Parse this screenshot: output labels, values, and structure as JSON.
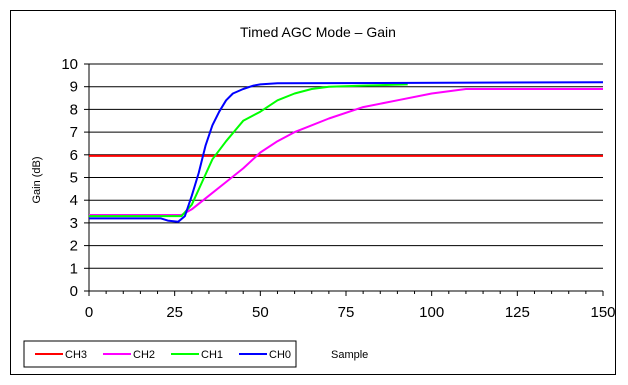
{
  "chart_data": {
    "type": "line",
    "title": "Timed AGC Mode – Gain",
    "xlabel": "Sample",
    "ylabel": "Gain (dB)",
    "xlim": [
      0,
      150
    ],
    "ylim": [
      0,
      10
    ],
    "x_ticks": [
      "0",
      "25",
      "50",
      "75",
      "100",
      "125",
      "150"
    ],
    "y_ticks": [
      "0",
      "1",
      "2",
      "3",
      "4",
      "5",
      "6",
      "7",
      "8",
      "9",
      "10"
    ],
    "grid": "horizontal",
    "legend_position": "bottom-left",
    "series": [
      {
        "name": "CH3",
        "color": "#ff0000",
        "x": [
          0,
          150
        ],
        "y": [
          5.95,
          5.95
        ]
      },
      {
        "name": "CH2",
        "color": "#ff00ff",
        "x": [
          0,
          27,
          30,
          35,
          40,
          45,
          50,
          55,
          60,
          70,
          80,
          90,
          100,
          110,
          150
        ],
        "y": [
          3.35,
          3.35,
          3.6,
          4.2,
          4.8,
          5.4,
          6.1,
          6.6,
          7.0,
          7.6,
          8.1,
          8.4,
          8.7,
          8.9,
          8.9
        ]
      },
      {
        "name": "CH1",
        "color": "#00ff00",
        "x": [
          0,
          27,
          30,
          33,
          36,
          40,
          45,
          50,
          55,
          60,
          65,
          70,
          80,
          93
        ],
        "y": [
          3.3,
          3.3,
          3.8,
          4.8,
          5.8,
          6.6,
          7.5,
          7.9,
          8.4,
          8.7,
          8.9,
          9.0,
          9.05,
          9.1
        ]
      },
      {
        "name": "CH0",
        "color": "#0000ff",
        "x": [
          0,
          21,
          23,
          26,
          28,
          30,
          32,
          34,
          36,
          38,
          40,
          42,
          45,
          48,
          50,
          55,
          150
        ],
        "y": [
          3.2,
          3.2,
          3.1,
          3.05,
          3.3,
          4.2,
          5.2,
          6.4,
          7.3,
          7.9,
          8.4,
          8.7,
          8.9,
          9.05,
          9.1,
          9.15,
          9.2
        ]
      }
    ]
  }
}
